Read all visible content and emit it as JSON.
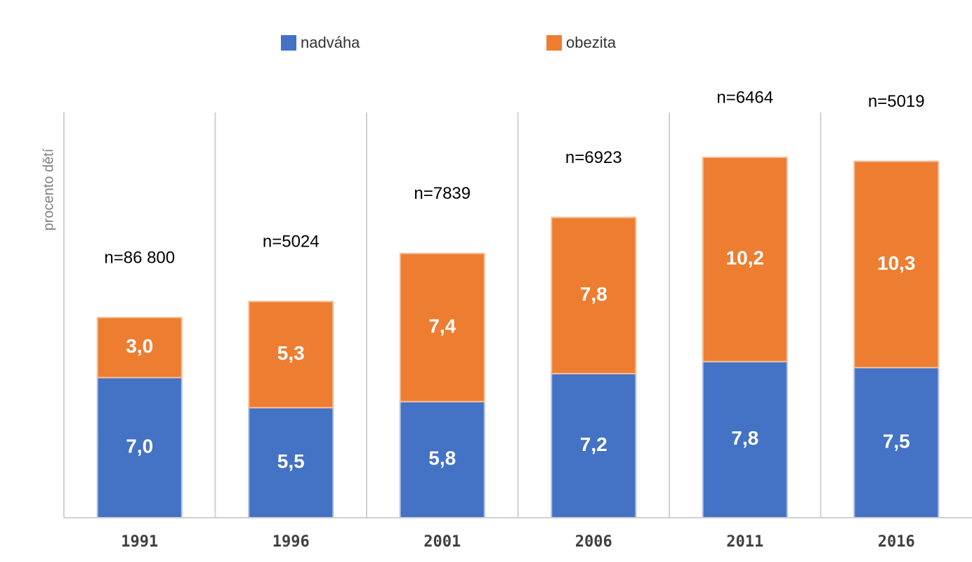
{
  "chart_data": {
    "type": "bar",
    "stacked": true,
    "ylabel": "procento dětí",
    "categories": [
      "1991",
      "1996",
      "2001",
      "2006",
      "2011",
      "2016"
    ],
    "series": [
      {
        "name": "nadváha",
        "color": "#4472c4",
        "values": [
          7.0,
          5.5,
          5.8,
          7.2,
          7.8,
          7.5
        ],
        "labels": [
          "7,0",
          "5,5",
          "5,8",
          "7,2",
          "7,8",
          "7,5"
        ]
      },
      {
        "name": "obezita",
        "color": "#ed7d31",
        "values": [
          3.0,
          5.3,
          7.4,
          7.8,
          10.2,
          10.3
        ],
        "labels": [
          "3,0",
          "5,3",
          "7,4",
          "7,8",
          "10,2",
          "10,3"
        ]
      }
    ],
    "annotations": [
      "n=86 800",
      "n=5024",
      "n=7839",
      "n=6923",
      "n=6464",
      "n=5019"
    ],
    "ylim": [
      0,
      21
    ],
    "grid": "vertical separators",
    "legend": "top-center"
  }
}
